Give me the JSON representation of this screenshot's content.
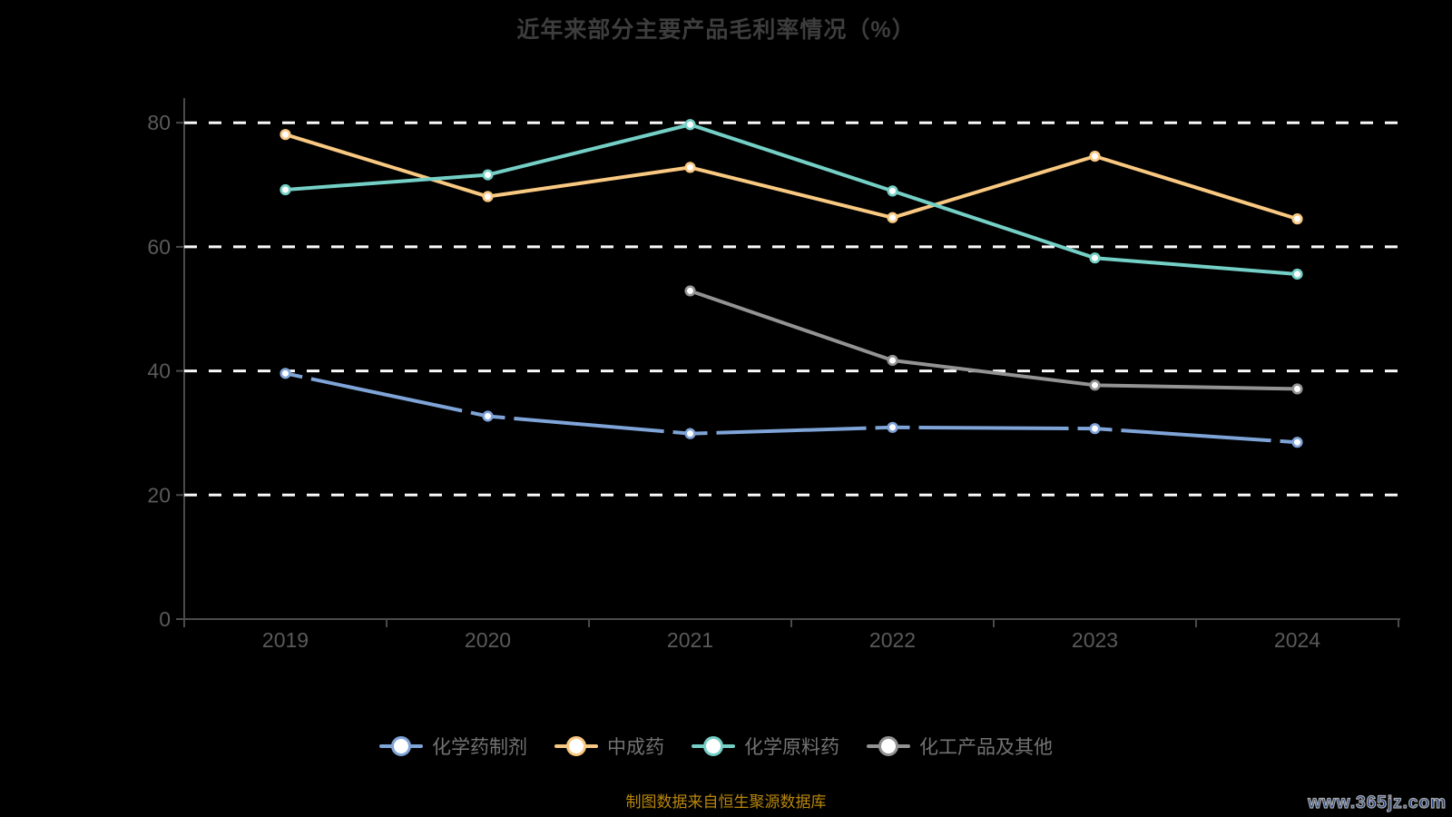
{
  "title": "近年来部分主要产品毛利率情况（%）",
  "footer": {
    "source_note": "制图数据来自恒生聚源数据库",
    "watermark": "www.365jz.com"
  },
  "colors": {
    "background": "#000000",
    "gridline": "#fafafa",
    "axis": "#4a4a4a",
    "axis_label": "#5a5a5a",
    "title_text": "#3d3d3d",
    "legend_text": "#737373",
    "source_note_text": "#b8860b",
    "watermark_fill": "#1c3e7c",
    "marker_fill": "#ffffff"
  },
  "chart_data": {
    "type": "line",
    "title": "近年来部分主要产品毛利率情况（%）",
    "categories": [
      "2019",
      "2020",
      "2021",
      "2022",
      "2023",
      "2024"
    ],
    "series": [
      {
        "name": "化学药制剂",
        "color": "#7fa4d8",
        "values": [
          39.6,
          32.7,
          29.9,
          30.9,
          30.7,
          28.5
        ],
        "gap_dashes_at_points": true
      },
      {
        "name": "中成药",
        "color": "#f9c982",
        "values": [
          78.1,
          68.1,
          72.8,
          64.7,
          74.6,
          64.5
        ],
        "gap_dashes_at_points": false
      },
      {
        "name": "化学原料药",
        "color": "#74d0c6",
        "values": [
          69.2,
          71.6,
          79.7,
          69.0,
          58.2,
          55.6
        ],
        "gap_dashes_at_points": false
      },
      {
        "name": "化工产品及其他",
        "color": "#939393",
        "values": [
          null,
          null,
          52.9,
          41.7,
          37.7,
          37.1
        ],
        "gap_dashes_at_points": false
      }
    ],
    "xlabel": "",
    "ylabel": "",
    "ylim": [
      0,
      80
    ],
    "yticks": [
      0,
      20,
      40,
      60,
      80
    ],
    "grid": "horizontal-dashed-white",
    "legend_position": "bottom",
    "marker_style": "white-filled-circle-colored-ring"
  }
}
